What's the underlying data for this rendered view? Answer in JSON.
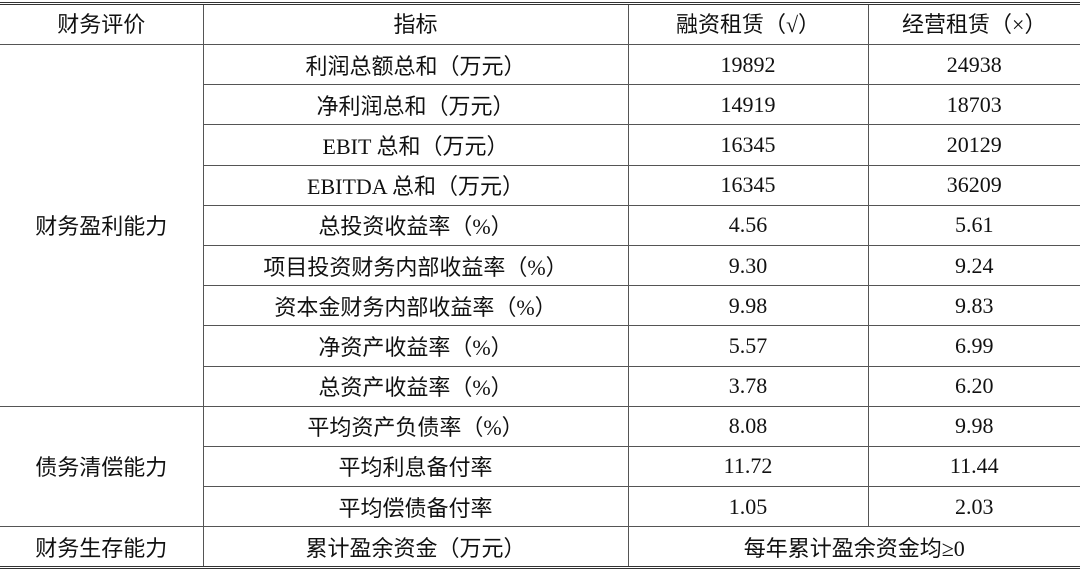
{
  "header": [
    "财务评价",
    "指标",
    "融资租赁（√）",
    "经营租赁（×）"
  ],
  "groups": [
    {
      "category": "财务盈利能力",
      "rows": [
        [
          "利润总额总和（万元）",
          "19892",
          "24938"
        ],
        [
          "净利润总和（万元）",
          "14919",
          "18703"
        ],
        [
          "EBIT 总和（万元）",
          "16345",
          "20129"
        ],
        [
          "EBITDA 总和（万元）",
          "16345",
          "36209"
        ],
        [
          "总投资收益率（%）",
          "4.56",
          "5.61"
        ],
        [
          "项目投资财务内部收益率（%）",
          "9.30",
          "9.24"
        ],
        [
          "资本金财务内部收益率（%）",
          "9.98",
          "9.83"
        ],
        [
          "净资产收益率（%）",
          "5.57",
          "6.99"
        ],
        [
          "总资产收益率（%）",
          "3.78",
          "6.20"
        ]
      ]
    },
    {
      "category": "债务清偿能力",
      "rows": [
        [
          "平均资产负债率（%）",
          "8.08",
          "9.98"
        ],
        [
          "平均利息备付率",
          "11.72",
          "11.44"
        ],
        [
          "平均偿债备付率",
          "1.05",
          "2.03"
        ]
      ]
    },
    {
      "category": "财务生存能力",
      "rows": [
        [
          "累计盈余资金（万元）",
          "每年累计盈余资金均≥0"
        ]
      ]
    }
  ]
}
